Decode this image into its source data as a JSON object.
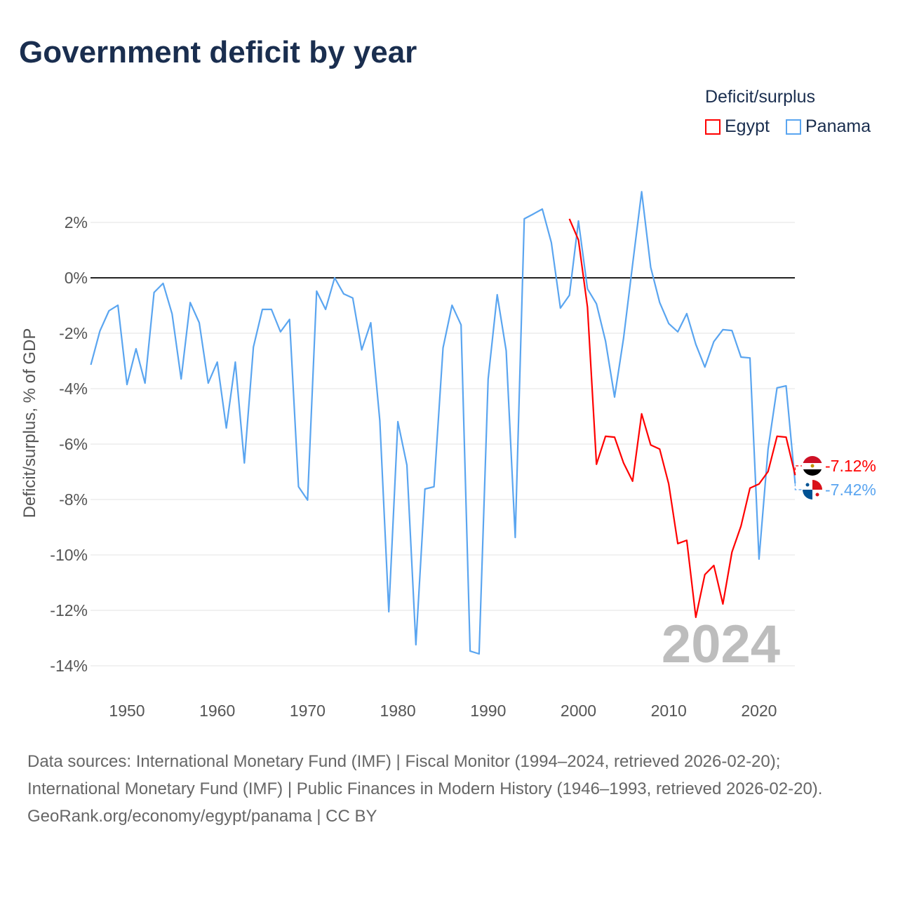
{
  "title": "Government deficit by year",
  "legend": {
    "title": "Deficit/surplus",
    "items": [
      {
        "name": "Egypt",
        "color": "#ff0000"
      },
      {
        "name": "Panama",
        "color": "#5aa5f0"
      }
    ]
  },
  "sources": {
    "line1": "Data sources: International Monetary Fund (IMF) | Fiscal Monitor (1994–2024, retrieved 2026-02-20);",
    "line2": "International Monetary Fund (IMF) | Public Finances in Modern History (1946–1993, retrieved 2026-02-20).",
    "line3": "GeoRank.org/economy/egypt/panama | CC BY"
  },
  "chart_data": {
    "type": "line",
    "title": "Government deficit by year",
    "xlabel": "",
    "ylabel": "Deficit/surplus, % of GDP",
    "xlim": [
      1946,
      2024
    ],
    "ylim": [
      -15,
      3.5
    ],
    "xticks": [
      1950,
      1960,
      1970,
      1980,
      1990,
      2000,
      2010,
      2020
    ],
    "yticks": [
      2,
      0,
      -2,
      -4,
      -6,
      -8,
      -10,
      -12,
      -14
    ],
    "ytick_labels": [
      "2%",
      "0%",
      "-2%",
      "-4%",
      "-6%",
      "-8%",
      "-10%",
      "-12%",
      "-14%"
    ],
    "year_watermark": "2024",
    "grid": true,
    "legend_position": "top-right",
    "series": [
      {
        "name": "Panama",
        "color": "#5aa5f0",
        "end_label": "-7.42%",
        "start_year": 1946,
        "values": [
          -3.14,
          -1.92,
          -1.19,
          -0.99,
          -3.85,
          -2.56,
          -3.8,
          -0.53,
          -0.2,
          -1.3,
          -3.65,
          -0.89,
          -1.62,
          -3.8,
          -3.04,
          -5.42,
          -3.04,
          -6.68,
          -2.5,
          -1.14,
          -1.14,
          -1.95,
          -1.5,
          -7.54,
          -8.02,
          -0.48,
          -1.14,
          0,
          -0.58,
          -0.73,
          -2.6,
          -1.62,
          -5.16,
          -12.05,
          -5.19,
          -6.76,
          -13.24,
          -7.62,
          -7.54,
          -2.53,
          -0.99,
          -1.7,
          -13.47,
          -13.57,
          -3.65,
          -0.61,
          -2.63,
          -9.37,
          2.13,
          2.3,
          2.48,
          1.27,
          -1.09,
          -0.63,
          2.05,
          -0.4,
          -0.94,
          -2.28,
          -4.3,
          -2.18,
          0.48,
          3.11,
          0.38,
          -0.89,
          -1.65,
          -1.95,
          -1.29,
          -2.4,
          -3.22,
          -2.3,
          -1.87,
          -1.9,
          -2.86,
          -2.89,
          -10.15,
          -6.18,
          -3.97,
          -3.9,
          -7.42
        ]
      },
      {
        "name": "Egypt",
        "color": "#ff0000",
        "end_label": "-7.12%",
        "start_year": 1999,
        "values": [
          2.13,
          1.37,
          -1.06,
          -6.73,
          -5.72,
          -5.75,
          -6.68,
          -7.34,
          -4.91,
          -6.03,
          -6.18,
          -7.44,
          -9.59,
          -9.47,
          -12.25,
          -10.71,
          -10.38,
          -11.77,
          -9.9,
          -8.96,
          -7.59,
          -7.44,
          -6.99,
          -5.72,
          -5.75,
          -7.12
        ]
      }
    ]
  }
}
